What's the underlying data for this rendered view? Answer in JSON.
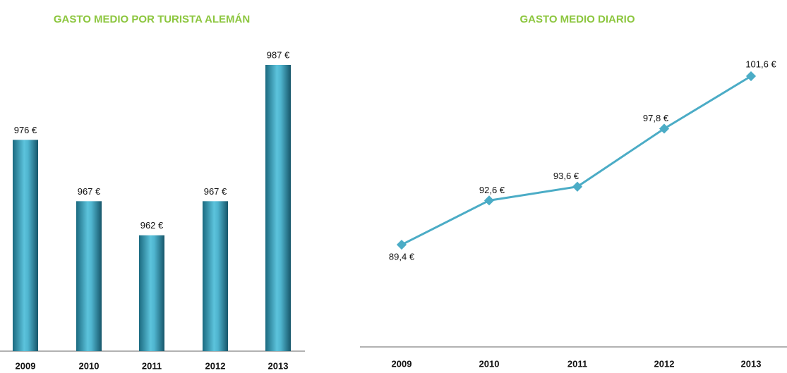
{
  "chart_data": [
    {
      "type": "bar",
      "title": "GASTO MEDIO POR TURISTA ALEMÁN",
      "categories": [
        "2009",
        "2010",
        "2011",
        "2012",
        "2013"
      ],
      "values": [
        976,
        967,
        962,
        967,
        987
      ],
      "value_labels": [
        "976 €",
        "967 €",
        "962 €",
        "967 €",
        "987 €"
      ],
      "color": "#3a9fbb",
      "ylim": [
        945,
        990
      ]
    },
    {
      "type": "line",
      "title": "GASTO MEDIO DIARIO",
      "categories": [
        "2009",
        "2010",
        "2011",
        "2012",
        "2013"
      ],
      "values": [
        89.4,
        92.6,
        93.6,
        97.8,
        101.6
      ],
      "value_labels": [
        "89,4 €",
        "92,6 €",
        "93,6 €",
        "97,8 €",
        "101,6 €"
      ],
      "color": "#4bacc6",
      "ylim": [
        82,
        104
      ]
    }
  ]
}
